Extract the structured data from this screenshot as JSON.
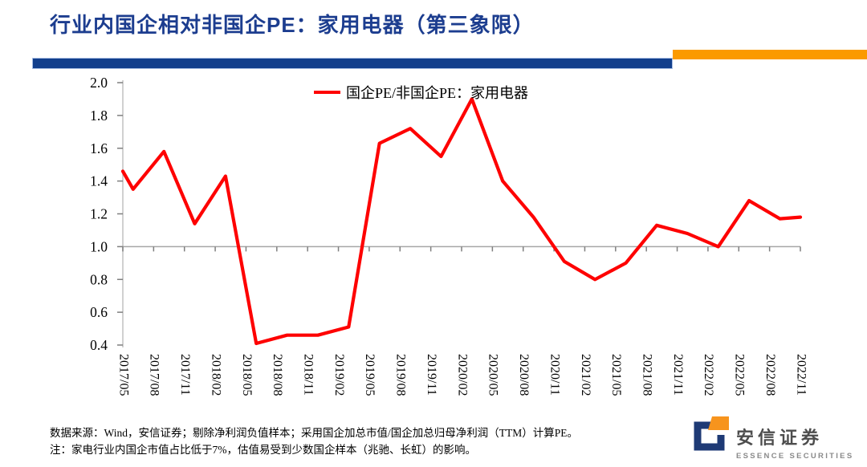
{
  "header": {
    "title": "行业内国企相对非国企PE：家用电器（第三象限）"
  },
  "chart_data": {
    "type": "line",
    "legend": "国企PE/非国企PE：家用电器",
    "line_color": "#FE0000",
    "x_tick_labels": [
      "2017/05",
      "2017/08",
      "2017/11",
      "2018/02",
      "2018/05",
      "2018/08",
      "2018/11",
      "2019/02",
      "2019/05",
      "2019/08",
      "2019/11",
      "2020/02",
      "2020/05",
      "2020/08",
      "2020/11",
      "2021/02",
      "2021/05",
      "2021/08",
      "2021/11",
      "2022/02",
      "2022/05",
      "2022/08",
      "2022/11"
    ],
    "y_tick_labels": [
      "2.0",
      "1.8",
      "1.6",
      "1.4",
      "1.2",
      "1.0",
      "0.8",
      "0.6",
      "0.4"
    ],
    "y_min": 0.4,
    "y_max": 2.0,
    "y_step": 0.2,
    "x_axis_crosses_at": 1.0,
    "x_unit": "months since 2017/05 (0) through 2022/11 (66); axis labels mark every 3rd month",
    "points": [
      [
        0,
        1.46
      ],
      [
        1,
        1.35
      ],
      [
        4,
        1.58
      ],
      [
        7,
        1.14
      ],
      [
        10,
        1.43
      ],
      [
        13,
        0.41
      ],
      [
        16,
        0.46
      ],
      [
        19,
        0.46
      ],
      [
        22,
        0.51
      ],
      [
        25,
        1.63
      ],
      [
        28,
        1.72
      ],
      [
        31,
        1.55
      ],
      [
        34,
        1.9
      ],
      [
        37,
        1.4
      ],
      [
        40,
        1.18
      ],
      [
        43,
        0.91
      ],
      [
        46,
        0.8
      ],
      [
        49,
        0.9
      ],
      [
        52,
        1.13
      ],
      [
        55,
        1.08
      ],
      [
        58,
        1.0
      ],
      [
        61,
        1.28
      ],
      [
        64,
        1.17
      ],
      [
        66,
        1.18
      ]
    ],
    "grid": "single horizontal axis line at y=1.0 with down ticks",
    "legend_position": "top-center-inside"
  },
  "footer": {
    "line1": "数据来源：Wind，安信证券；剔除净利润负值样本；采用国企加总市值/国企加总归母净利润（TTM）计算PE。",
    "line2": "注：家电行业内国企市值占比低于7%，估值易受到少数国企样本（兆驰、长虹）的影响。"
  },
  "logo": {
    "cn": "安信证券",
    "en": "ESSENCE SECURITIES"
  },
  "colors": {
    "navy": "#123F8C",
    "orange": "#FB9A00",
    "red": "#FE0000",
    "axis_gray": "#A6A6A6",
    "tick_gray": "#7F7F7F"
  }
}
